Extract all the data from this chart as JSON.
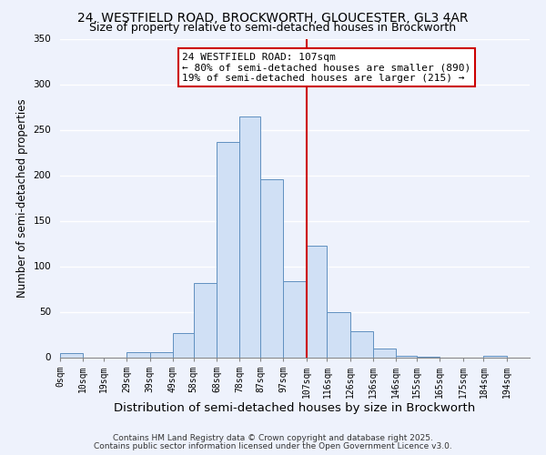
{
  "title1": "24, WESTFIELD ROAD, BROCKWORTH, GLOUCESTER, GL3 4AR",
  "title2": "Size of property relative to semi-detached houses in Brockworth",
  "xlabel": "Distribution of semi-detached houses by size in Brockworth",
  "ylabel": "Number of semi-detached properties",
  "bar_color": "#d0e0f5",
  "bar_edge_color": "#6090c0",
  "bar_left_edges": [
    0,
    10,
    19,
    29,
    39,
    49,
    58,
    68,
    78,
    87,
    97,
    107,
    116,
    126,
    136,
    146,
    155,
    165,
    175,
    184
  ],
  "bar_widths": [
    10,
    9,
    10,
    10,
    10,
    9,
    10,
    10,
    9,
    10,
    10,
    9,
    10,
    10,
    10,
    9,
    10,
    10,
    9,
    10
  ],
  "bar_heights": [
    5,
    0,
    0,
    6,
    6,
    27,
    82,
    237,
    265,
    196,
    84,
    123,
    50,
    29,
    10,
    2,
    1,
    0,
    0,
    2
  ],
  "tick_labels": [
    "0sqm",
    "10sqm",
    "19sqm",
    "29sqm",
    "39sqm",
    "49sqm",
    "58sqm",
    "68sqm",
    "78sqm",
    "87sqm",
    "97sqm",
    "107sqm",
    "116sqm",
    "126sqm",
    "136sqm",
    "146sqm",
    "155sqm",
    "165sqm",
    "175sqm",
    "184sqm",
    "194sqm"
  ],
  "tick_positions": [
    0,
    10,
    19,
    29,
    39,
    49,
    58,
    68,
    78,
    87,
    97,
    107,
    116,
    126,
    136,
    146,
    155,
    165,
    175,
    184,
    194
  ],
  "vline_x": 107,
  "vline_color": "#cc0000",
  "annotation_title": "24 WESTFIELD ROAD: 107sqm",
  "annotation_line1": "← 80% of semi-detached houses are smaller (890)",
  "annotation_line2": "19% of semi-detached houses are larger (215) →",
  "annotation_box_color": "#ffffff",
  "annotation_box_edge": "#cc0000",
  "ylim": [
    0,
    350
  ],
  "xlim": [
    0,
    204
  ],
  "footer1": "Contains HM Land Registry data © Crown copyright and database right 2025.",
  "footer2": "Contains public sector information licensed under the Open Government Licence v3.0.",
  "background_color": "#eef2fc",
  "grid_color": "#ffffff",
  "title1_fontsize": 10,
  "title2_fontsize": 9,
  "xlabel_fontsize": 9.5,
  "ylabel_fontsize": 8.5,
  "tick_fontsize": 7,
  "footer_fontsize": 6.5,
  "ann_fontsize": 8
}
